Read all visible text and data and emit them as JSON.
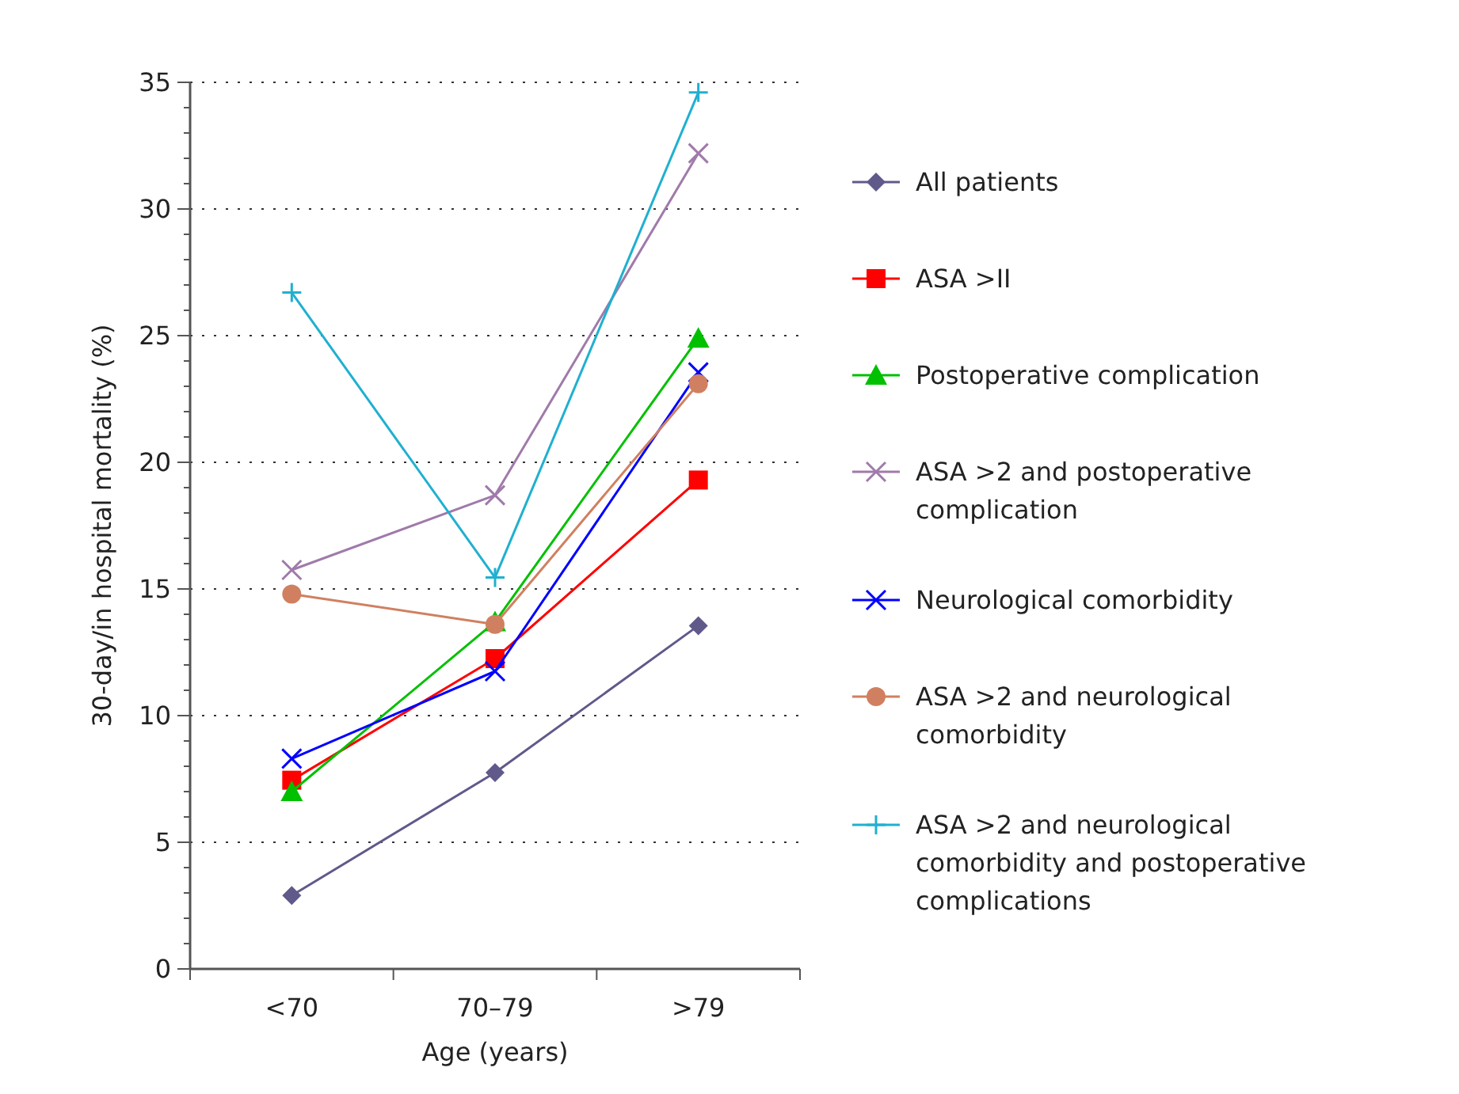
{
  "chart_data": {
    "type": "line",
    "xlabel": "Age (years)",
    "ylabel": "30-day/in hospital mortality (%)",
    "categories": [
      "<70",
      "70–79",
      ">79"
    ],
    "ylim": [
      0,
      35
    ],
    "yticks": [
      0,
      5,
      10,
      15,
      20,
      25,
      30,
      35
    ],
    "grid": "y",
    "legend": "right",
    "series": [
      {
        "name": "All patients",
        "color": "#5f5a8a",
        "marker": "diamond",
        "values": [
          2.9,
          7.75,
          13.55
        ]
      },
      {
        "name": "ASA >II",
        "color": "#ff0000",
        "marker": "square",
        "values": [
          7.45,
          12.25,
          19.3
        ]
      },
      {
        "name": "Postoperative complication",
        "color": "#00c000",
        "marker": "triangle",
        "values": [
          7.0,
          13.7,
          24.9
        ]
      },
      {
        "name": "ASA >2 and postoperative complication",
        "color": "#a07aaa",
        "marker": "cross",
        "values": [
          15.75,
          18.7,
          32.2
        ]
      },
      {
        "name": "Neurological comorbidity",
        "color": "#0000ff",
        "marker": "cross",
        "values": [
          8.3,
          11.75,
          23.55
        ]
      },
      {
        "name": "ASA >2 and neurological comorbidity",
        "color": "#d08060",
        "marker": "circle",
        "values": [
          14.8,
          13.6,
          23.1
        ]
      },
      {
        "name": "ASA >2 and neurological comorbidity and postoperative complications",
        "color": "#20b0d0",
        "marker": "plus",
        "values": [
          26.7,
          15.45,
          34.6
        ]
      }
    ]
  }
}
